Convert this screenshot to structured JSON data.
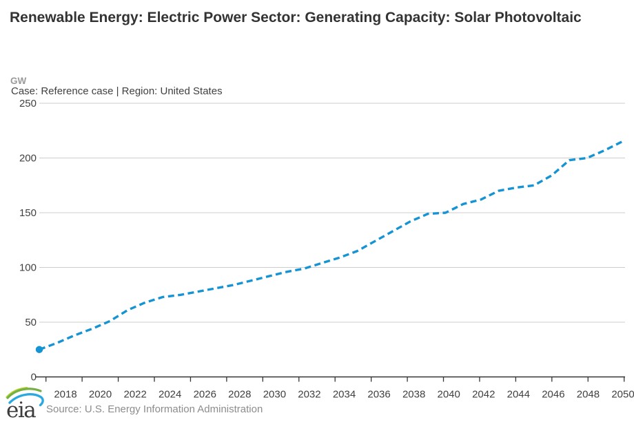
{
  "header": {
    "title": "Renewable Energy: Electric Power Sector: Generating Capacity: Solar Photovoltaic",
    "unit": "GW",
    "meta": "Case: Reference case | Region: United States"
  },
  "footer": {
    "logo_text": "eia",
    "source": "Source: U.S. Energy Information Administration"
  },
  "colors": {
    "line": "#1593d2",
    "grid": "#cccccc",
    "axis": "#333333",
    "tick_label": "#404040",
    "muted": "#9a9a9a"
  },
  "chart_data": {
    "type": "line",
    "title": "Renewable Energy: Electric Power Sector: Generating Capacity: Solar Photovoltaic",
    "subtitle": "Case: Reference case | Region: United States",
    "ylabel": "GW",
    "xlabel": "",
    "ylim": [
      0,
      250
    ],
    "yticks": [
      0,
      50,
      100,
      150,
      200,
      250
    ],
    "x": [
      2017,
      2018,
      2019,
      2020,
      2021,
      2022,
      2023,
      2024,
      2025,
      2026,
      2027,
      2028,
      2029,
      2030,
      2031,
      2032,
      2033,
      2034,
      2035,
      2036,
      2037,
      2038,
      2039,
      2040,
      2041,
      2042,
      2043,
      2044,
      2045,
      2046,
      2047,
      2048,
      2049,
      2050
    ],
    "xtick_labels": [
      "2018",
      "2020",
      "2022",
      "2024",
      "2026",
      "2028",
      "2030",
      "2032",
      "2034",
      "2036",
      "2038",
      "2040",
      "2042",
      "2044",
      "2046",
      "2048",
      "2050"
    ],
    "series": [
      {
        "name": "Solar Photovoltaic generating capacity (Reference case, United States)",
        "style": "dashed",
        "marker": "dot-at-first-point",
        "values": [
          25,
          31,
          38,
          44,
          51,
          61,
          68,
          73,
          75,
          78,
          81,
          84,
          88,
          92,
          96,
          99,
          104,
          109,
          115,
          124,
          133,
          142,
          149,
          150,
          158,
          162,
          170,
          173,
          175,
          184,
          198,
          200,
          207,
          215
        ]
      }
    ],
    "grid": "horizontal-only",
    "legend": "none"
  }
}
